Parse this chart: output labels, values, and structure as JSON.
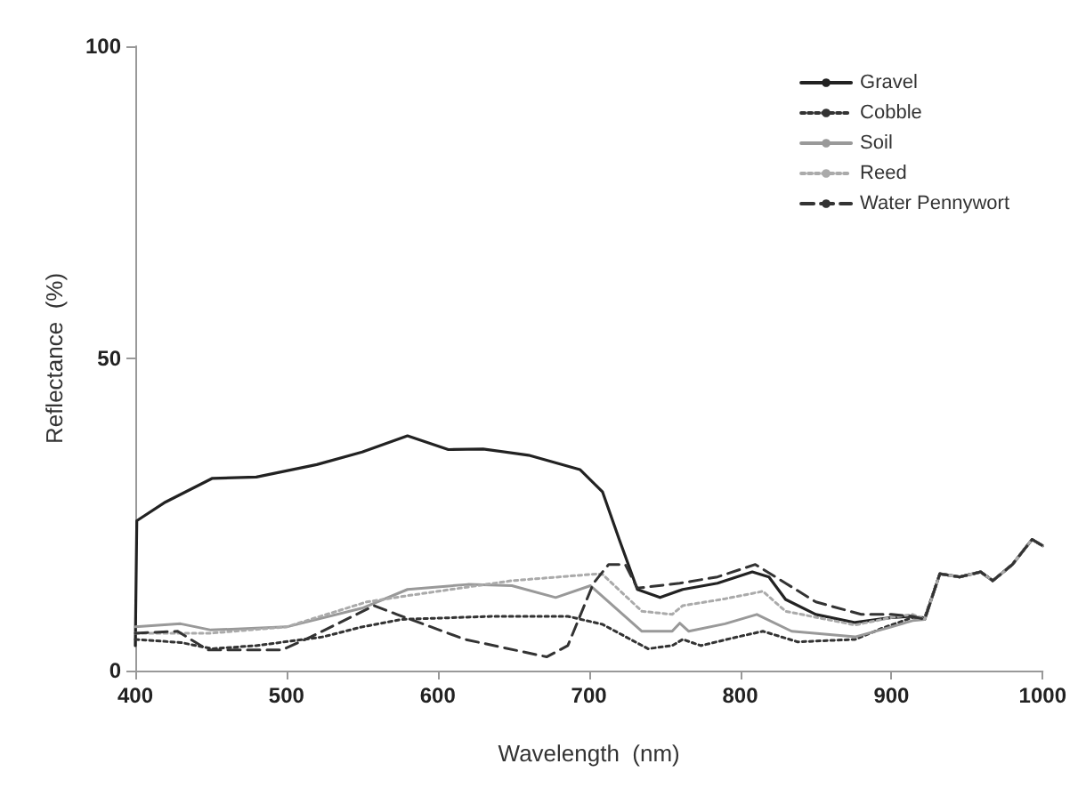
{
  "chart_data": {
    "type": "line",
    "xlabel": "Wavelength  (nm)",
    "ylabel": "Reflectance  (%)",
    "xlim": [
      400,
      1000
    ],
    "xticks": [
      400,
      500,
      600,
      700,
      800,
      900,
      1000
    ],
    "ylim": [
      0,
      100
    ],
    "yticks": [
      0,
      50,
      100
    ],
    "grid": false,
    "legend": "top right",
    "marker": "none",
    "series": [
      {
        "name": "Gravel",
        "color": "#222222",
        "line_style": "solid",
        "x": [
          400,
          401,
          420,
          451,
          480,
          520,
          550,
          580,
          607,
          630,
          660,
          694,
          709,
          720,
          732,
          747,
          762,
          785,
          808,
          819,
          830,
          850,
          876,
          900,
          914,
          922,
          932,
          945,
          959,
          967,
          980,
          993,
          1000
        ],
        "values": [
          4,
          24,
          27,
          30.8,
          31,
          33,
          35,
          37.6,
          35.4,
          35.5,
          34.5,
          32.2,
          28.6,
          21,
          13,
          11.7,
          13,
          14,
          15.8,
          15,
          11.4,
          9,
          7.7,
          8.5,
          8.7,
          8.2,
          15.5,
          15,
          15.8,
          14.4,
          17,
          21,
          20
        ]
      },
      {
        "name": "Cobble",
        "color": "#333333",
        "line_style": "dotted",
        "x": [
          400,
          430,
          451,
          480,
          524,
          550,
          576,
          637,
          686,
          709,
          739,
          755,
          762,
          774,
          800,
          815,
          838,
          876,
          894,
          914,
          922,
          932,
          945,
          959,
          967,
          980,
          993,
          1000
        ],
        "values": [
          5,
          4.5,
          3.5,
          4,
          5.4,
          7,
          8.2,
          8.7,
          8.7,
          7.4,
          3.5,
          4,
          5,
          4,
          5.5,
          6.3,
          4.6,
          5,
          6.8,
          8.5,
          8.5,
          15.5,
          15,
          15.8,
          14.4,
          17,
          21,
          20
        ]
      },
      {
        "name": "Soil",
        "color": "#999999",
        "line_style": "solid",
        "x": [
          400,
          430,
          450,
          500,
          550,
          580,
          620,
          649,
          678,
          701,
          735,
          755,
          760,
          766,
          790,
          811,
          834,
          876,
          900,
          914,
          922,
          932,
          945,
          959,
          967,
          980,
          993,
          1000
        ],
        "values": [
          7,
          7.5,
          6.5,
          7,
          10,
          13,
          13.8,
          13.6,
          11.7,
          13.6,
          6.3,
          6.3,
          7.6,
          6.3,
          7.5,
          9,
          6.3,
          5.4,
          7,
          8,
          8.2,
          15.5,
          15,
          15.8,
          14.4,
          17,
          21,
          20
        ]
      },
      {
        "name": "Reed",
        "color": "#aaaaaa",
        "line_style": "dotted",
        "x": [
          400,
          450,
          500,
          553,
          580,
          649,
          706,
          709,
          735,
          755,
          762,
          790,
          815,
          830,
          876,
          900,
          914,
          922,
          932,
          945,
          959,
          967,
          980,
          993,
          1000
        ],
        "values": [
          6,
          6,
          7,
          11,
          12,
          14.4,
          15.5,
          15.4,
          9.5,
          9,
          10.4,
          11.5,
          12.7,
          9.5,
          7.3,
          8.5,
          9,
          8.2,
          15.5,
          15,
          15.8,
          14.4,
          17,
          21,
          20
        ]
      },
      {
        "name": "Water Pennywort",
        "color": "#333333",
        "line_style": "dashed",
        "x": [
          400,
          428,
          448,
          497,
          516,
          558,
          573,
          618,
          672,
          686,
          703,
          713,
          724,
          732,
          760,
          785,
          810,
          830,
          850,
          880,
          900,
          914,
          922,
          932,
          945,
          959,
          967,
          980,
          993,
          1000
        ],
        "values": [
          6,
          6.3,
          3.3,
          3.3,
          5.4,
          10.4,
          9,
          5,
          2.2,
          4,
          14,
          17,
          17,
          13.2,
          14,
          15,
          17,
          14,
          11,
          9,
          9,
          8.7,
          8.2,
          15.5,
          15,
          15.8,
          14.4,
          17,
          21,
          20
        ]
      }
    ]
  }
}
